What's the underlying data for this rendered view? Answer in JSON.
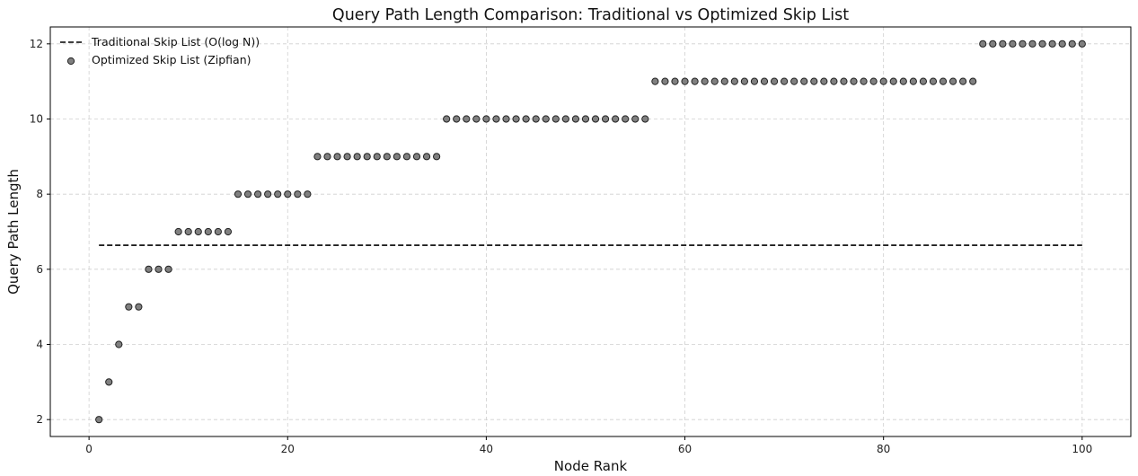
{
  "chart_data": {
    "type": "scatter",
    "title": "Query Path Length Comparison: Traditional vs Optimized Skip List",
    "xlabel": "Node Rank",
    "ylabel": "Query Path Length",
    "xlim": [
      -3.9,
      104.9
    ],
    "ylim": [
      1.55,
      12.45
    ],
    "xticks": [
      0,
      20,
      40,
      60,
      80,
      100
    ],
    "yticks": [
      2,
      4,
      6,
      8,
      10,
      12
    ],
    "grid": true,
    "grid_style": "dashed",
    "legend_position": "top-left",
    "series": [
      {
        "name": "Traditional Skip List (O(log N))",
        "kind": "line",
        "style": "dashed",
        "color": "#000000",
        "x": [
          1,
          100
        ],
        "y": [
          6.64,
          6.64
        ]
      },
      {
        "name": "Optimized Skip List (Zipfian)",
        "kind": "scatter",
        "color": "#808080",
        "edgecolor": "#222222",
        "x": [
          1,
          2,
          3,
          4,
          5,
          6,
          7,
          8,
          9,
          10,
          11,
          12,
          13,
          14,
          15,
          16,
          17,
          18,
          19,
          20,
          21,
          22,
          23,
          24,
          25,
          26,
          27,
          28,
          29,
          30,
          31,
          32,
          33,
          34,
          35,
          36,
          37,
          38,
          39,
          40,
          41,
          42,
          43,
          44,
          45,
          46,
          47,
          48,
          49,
          50,
          51,
          52,
          53,
          54,
          55,
          56,
          57,
          58,
          59,
          60,
          61,
          62,
          63,
          64,
          65,
          66,
          67,
          68,
          69,
          70,
          71,
          72,
          73,
          74,
          75,
          76,
          77,
          78,
          79,
          80,
          81,
          82,
          83,
          84,
          85,
          86,
          87,
          88,
          89,
          90,
          91,
          92,
          93,
          94,
          95,
          96,
          97,
          98,
          99,
          100
        ],
        "y": [
          2,
          3,
          4,
          5,
          5,
          6,
          6,
          6,
          7,
          7,
          7,
          7,
          7,
          7,
          8,
          8,
          8,
          8,
          8,
          8,
          8,
          8,
          9,
          9,
          9,
          9,
          9,
          9,
          9,
          9,
          9,
          9,
          9,
          9,
          9,
          10,
          10,
          10,
          10,
          10,
          10,
          10,
          10,
          10,
          10,
          10,
          10,
          10,
          10,
          10,
          10,
          10,
          10,
          10,
          10,
          10,
          11,
          11,
          11,
          11,
          11,
          11,
          11,
          11,
          11,
          11,
          11,
          11,
          11,
          11,
          11,
          11,
          11,
          11,
          11,
          11,
          11,
          11,
          11,
          11,
          11,
          11,
          11,
          11,
          11,
          11,
          11,
          11,
          11,
          12,
          12,
          12,
          12,
          12,
          12,
          12,
          12,
          12,
          12,
          12
        ]
      }
    ]
  }
}
